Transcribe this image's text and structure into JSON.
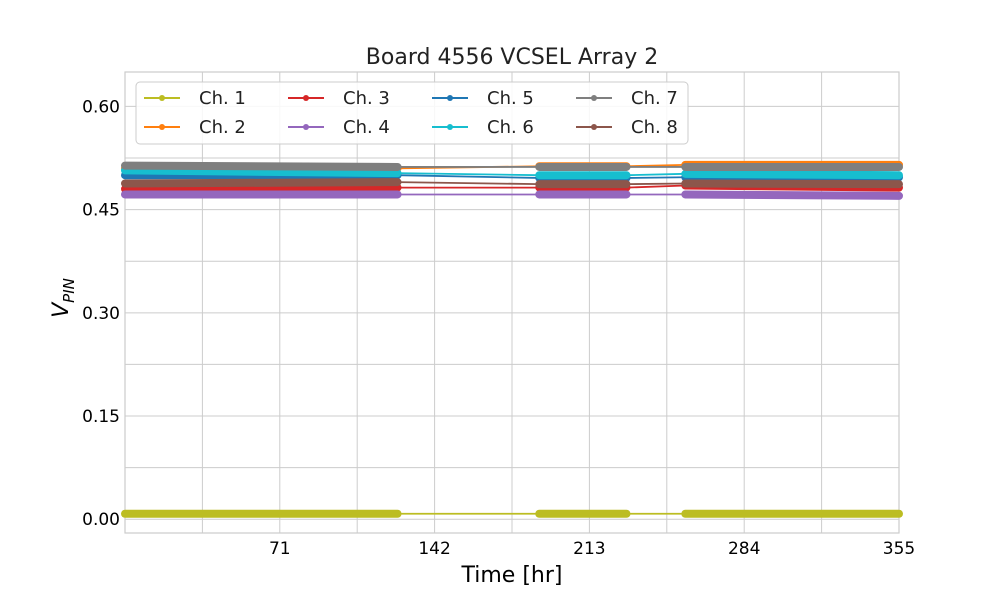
{
  "chart_data": {
    "type": "line",
    "title": "Board 4556 VCSEL Array 2",
    "xlabel": "Time [hr]",
    "ylabel_main": "V",
    "ylabel_sub": "PIN",
    "xlim": [
      0,
      355
    ],
    "ylim": [
      -0.02,
      0.65
    ],
    "x_ticks": [
      71,
      142,
      213,
      284,
      355
    ],
    "x_ticks_minor": [
      35.5,
      106.5,
      177.5,
      248.5,
      319.5
    ],
    "y_ticks": [
      0.0,
      0.15,
      0.3,
      0.45,
      0.6
    ],
    "y_tick_labels": [
      "0.00",
      "0.15",
      "0.30",
      "0.45",
      "0.60"
    ],
    "y_ticks_minor": [
      0.075,
      0.225,
      0.375,
      0.525
    ],
    "grid": true,
    "legend_position": "top-left",
    "segments": [
      [
        0,
        125
      ],
      [
        190,
        230
      ],
      [
        257,
        355
      ]
    ],
    "series": [
      {
        "name": "Ch. 1",
        "color": "#bcbd22",
        "values": [
          0.008,
          0.008,
          0.008,
          0.008,
          0.008,
          0.008
        ]
      },
      {
        "name": "Ch. 2",
        "color": "#ff7f0e",
        "values": [
          0.51,
          0.51,
          0.513,
          0.513,
          0.515,
          0.515
        ]
      },
      {
        "name": "Ch. 3",
        "color": "#d62728",
        "values": [
          0.48,
          0.482,
          0.482,
          0.482,
          0.485,
          0.482
        ]
      },
      {
        "name": "Ch. 4",
        "color": "#9467bd",
        "values": [
          0.472,
          0.472,
          0.472,
          0.472,
          0.472,
          0.47
        ]
      },
      {
        "name": "Ch. 5",
        "color": "#1f77b4",
        "values": [
          0.5,
          0.5,
          0.496,
          0.496,
          0.497,
          0.497
        ]
      },
      {
        "name": "Ch. 6",
        "color": "#17becf",
        "values": [
          0.507,
          0.503,
          0.5,
          0.5,
          0.502,
          0.5
        ]
      },
      {
        "name": "Ch. 7",
        "color": "#7f7f7f",
        "values": [
          0.514,
          0.512,
          0.512,
          0.512,
          0.512,
          0.512
        ]
      },
      {
        "name": "Ch. 8",
        "color": "#8c564b",
        "values": [
          0.488,
          0.49,
          0.487,
          0.487,
          0.488,
          0.487
        ]
      }
    ],
    "segment_x": [
      0,
      125,
      190,
      230,
      257,
      355
    ]
  }
}
